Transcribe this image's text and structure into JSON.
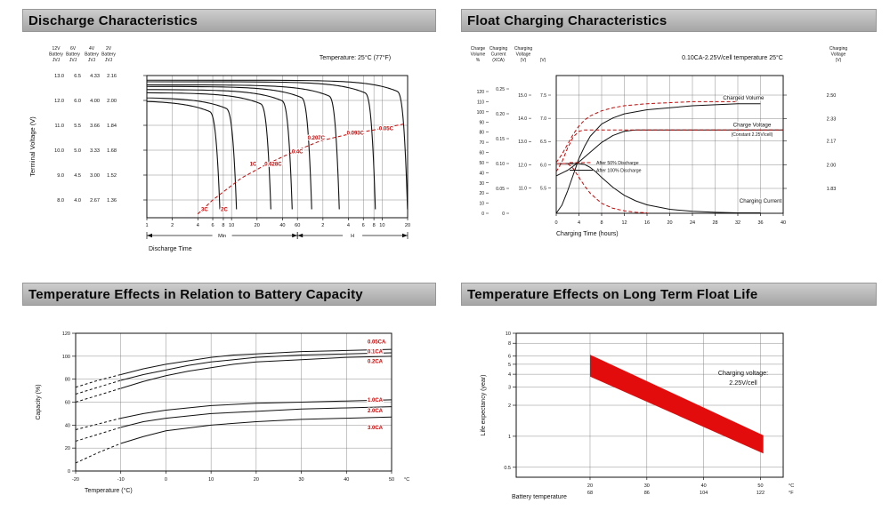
{
  "colors": {
    "red": "#c40808",
    "band_red": "#e30c0c",
    "grid": "#6f6f6f",
    "ink": "#111111",
    "header_top": "#cdcdcd",
    "header_bottom": "#a5a5a5"
  },
  "panels": {
    "discharge": {
      "title": "Discharge Characteristics"
    },
    "float_charging": {
      "title": "Float Charging Characteristics"
    },
    "temp_capacity": {
      "title": "Temperature Effects in Relation to Battery Capacity"
    },
    "float_life": {
      "title": "Temperature Effects on Long Term Float Life"
    }
  },
  "chart_data": [
    {
      "id": "discharge",
      "type": "line",
      "title": "Discharge Characteristics",
      "annotation": "Temperature: 25°C (77°F)",
      "xlabel": "Discharge Time",
      "ylabel": "Terminal Voltage (V)",
      "x_scale": "log",
      "x_unit_sections": [
        {
          "label": "Min",
          "ticks": [
            1,
            2,
            4,
            6,
            8,
            10,
            20,
            40,
            60
          ]
        },
        {
          "label": "H",
          "ticks": [
            2,
            4,
            6,
            8,
            10,
            20
          ]
        }
      ],
      "y_axes": [
        {
          "name": "12V Battery JVJ",
          "ticks": [
            "13.0",
            "12.0",
            "11.0",
            "10.0",
            "9.0",
            "8.0"
          ]
        },
        {
          "name": "6V Battery JVJ",
          "ticks": [
            "6.5",
            "6.0",
            "5.5",
            "5.0",
            "4.5",
            "4.0"
          ]
        },
        {
          "name": "4V Battery JVJ",
          "ticks": [
            "4.33",
            "4.00",
            "3.66",
            "3.33",
            "3.00",
            "2.67"
          ]
        },
        {
          "name": "2V Battery JVJ",
          "ticks": [
            "2.16",
            "2.00",
            "1.84",
            "1.68",
            "1.52",
            "1.36"
          ]
        }
      ],
      "y_range_2v_cell": [
        1.36,
        2.16
      ],
      "curves": [
        {
          "label": "3C",
          "t_end_min": 7,
          "v_start": 2.0,
          "label_at": [
            4.8,
            1.29
          ]
        },
        {
          "label": "2C",
          "t_end_min": 11,
          "v_start": 2.02,
          "label_at": [
            8.2,
            1.29
          ]
        },
        {
          "label": "1C",
          "t_end_min": 28,
          "v_start": 2.05,
          "label_at": [
            18,
            1.58
          ]
        },
        {
          "label": "0.628C",
          "t_end_min": 50,
          "v_start": 2.07,
          "label_at": [
            31,
            1.58
          ]
        },
        {
          "label": "0.4C",
          "t_end_min": 85,
          "v_start": 2.09,
          "label_at": [
            60,
            1.66
          ]
        },
        {
          "label": "0.207C",
          "t_end_min": 180,
          "v_start": 2.1,
          "label_at": [
            100,
            1.75
          ]
        },
        {
          "label": "0.093C",
          "t_end_min": 480,
          "v_start": 2.12,
          "label_at": [
            290,
            1.78
          ]
        },
        {
          "label": "0.05C",
          "t_end_min": 1150,
          "v_start": 2.13,
          "label_at": [
            670,
            1.81
          ]
        }
      ],
      "eod_dashed_curve": [
        [
          4,
          1.27
        ],
        [
          6,
          1.36
        ],
        [
          13,
          1.5
        ],
        [
          26,
          1.59
        ],
        [
          54,
          1.67
        ],
        [
          112,
          1.74
        ],
        [
          230,
          1.78
        ],
        [
          480,
          1.81
        ],
        [
          1120,
          1.85
        ]
      ]
    },
    {
      "id": "float_charging",
      "type": "line",
      "title": "Float Charging Characteristics",
      "annotation": "0.10CA-2.25V/cell  temperature 25°C",
      "xlabel": "Charging Time (hours)",
      "x_ticks": [
        0,
        4,
        8,
        12,
        16,
        20,
        24,
        28,
        32,
        36,
        40
      ],
      "left_axis_headers": [
        {
          "x": 19,
          "lines": [
            "Charge",
            "Volume",
            "%"
          ]
        },
        {
          "x": 42,
          "lines": [
            "Charging",
            "Current",
            "(XCA)"
          ]
        },
        {
          "x": 70,
          "lines": [
            "Charging",
            "Voltage",
            "(V)"
          ]
        },
        {
          "x": 92,
          "lines": [
            "",
            "",
            "(V)"
          ]
        }
      ],
      "left_axes": [
        {
          "title": "Charge Volume %",
          "ticks": [
            "120",
            "110",
            "100",
            "90",
            "80",
            "70",
            "60",
            "50",
            "40",
            "30",
            "20",
            "10",
            "0"
          ]
        },
        {
          "title": "Charging Current (XCA)",
          "ticks": [
            "0.25",
            "0.20",
            "0.15",
            "0.10",
            "0.05",
            "0"
          ]
        },
        {
          "title": "Charging Voltage 12V (V)",
          "ticks": [
            "15.0",
            "14.0",
            "13.0",
            "12.0",
            "11.0"
          ]
        },
        {
          "title": "Charging Voltage 6V (V)",
          "ticks": [
            "7.5",
            "7.0",
            "6.5",
            "6.0",
            "5.5"
          ]
        }
      ],
      "right_axis": {
        "header_lines": [
          "Charging",
          "Voltage",
          "(V)"
        ],
        "ticks": [
          "2.50",
          "2.33",
          "2.17",
          "2.00",
          "1.83"
        ]
      },
      "series": [
        {
          "name": "Charged Volume (after 100% discharge)",
          "axis": "volume",
          "color": "black",
          "dash": false,
          "points": [
            [
              0,
              0
            ],
            [
              1,
              8
            ],
            [
              2,
              22
            ],
            [
              3,
              38
            ],
            [
              4,
              54
            ],
            [
              5,
              66
            ],
            [
              6,
              76
            ],
            [
              8,
              88
            ],
            [
              10,
              94
            ],
            [
              12,
              98
            ],
            [
              16,
              102
            ],
            [
              20,
              104
            ],
            [
              24,
              106
            ],
            [
              28,
              107
            ],
            [
              32,
              108
            ],
            [
              36,
              108
            ]
          ]
        },
        {
          "name": "Charged Volume (after 50% discharge)",
          "axis": "volume",
          "color": "red",
          "dash": true,
          "points": [
            [
              0,
              50
            ],
            [
              1,
              58
            ],
            [
              2,
              68
            ],
            [
              3,
              78
            ],
            [
              4,
              86
            ],
            [
              5,
              92
            ],
            [
              6,
              96
            ],
            [
              8,
              101
            ],
            [
              10,
              104
            ],
            [
              12,
              106
            ],
            [
              16,
              108
            ],
            [
              20,
              109
            ],
            [
              24,
              110
            ],
            [
              28,
              110
            ],
            [
              32,
              110
            ]
          ]
        },
        {
          "name": "Charge Voltage (after 100% discharge)",
          "axis": "voltage",
          "color": "black",
          "dash": false,
          "points": [
            [
              0,
              1.92
            ],
            [
              2,
              1.96
            ],
            [
              4,
              2.02
            ],
            [
              6,
              2.09
            ],
            [
              8,
              2.16
            ],
            [
              10,
              2.21
            ],
            [
              12,
              2.24
            ],
            [
              14,
              2.25
            ],
            [
              40,
              2.25
            ]
          ]
        },
        {
          "name": "Charge Voltage (after 50% discharge)",
          "axis": "voltage",
          "color": "red",
          "dash": true,
          "points": [
            [
              0,
              1.95
            ],
            [
              1,
              2.02
            ],
            [
              2,
              2.12
            ],
            [
              3,
              2.2
            ],
            [
              4,
              2.24
            ],
            [
              5,
              2.25
            ],
            [
              40,
              2.25
            ]
          ]
        },
        {
          "name": "Charging Current (after 100% discharge)",
          "axis": "current",
          "color": "black",
          "dash": false,
          "points": [
            [
              0,
              0.1
            ],
            [
              4,
              0.1
            ],
            [
              5,
              0.098
            ],
            [
              6,
              0.092
            ],
            [
              7,
              0.083
            ],
            [
              8,
              0.072
            ],
            [
              10,
              0.052
            ],
            [
              12,
              0.036
            ],
            [
              14,
              0.025
            ],
            [
              16,
              0.017
            ],
            [
              20,
              0.008
            ],
            [
              24,
              0.004
            ],
            [
              28,
              0.002
            ],
            [
              32,
              0.001
            ],
            [
              36,
              0.001
            ]
          ]
        },
        {
          "name": "Charging Current (after 50% discharge)",
          "axis": "current",
          "color": "red",
          "dash": true,
          "points": [
            [
              0,
              0.1
            ],
            [
              2,
              0.1
            ],
            [
              3,
              0.09
            ],
            [
              4,
              0.072
            ],
            [
              5,
              0.055
            ],
            [
              6,
              0.04
            ],
            [
              8,
              0.02
            ],
            [
              10,
              0.01
            ],
            [
              12,
              0.005
            ],
            [
              14,
              0.002
            ],
            [
              16,
              0.001
            ]
          ]
        }
      ],
      "plot_labels": [
        {
          "text": "Charged Volume",
          "h": 33,
          "axis": "volume",
          "value": 112,
          "fs": 6.2
        },
        {
          "text": "Charge Voltage",
          "h": 34.5,
          "axis": "voltage",
          "value": 2.275,
          "fs": 6.2
        },
        {
          "text": "(Constant 2.25V/cell)",
          "h": 34.5,
          "axis": "voltage",
          "value": 2.207,
          "fs": 5
        },
        {
          "text": "Charging Current",
          "h": 36,
          "axis": "current",
          "value": 0.021,
          "fs": 6.2
        }
      ],
      "legend": [
        {
          "label": "After 50% Discharge",
          "color": "red",
          "dash": true
        },
        {
          "label": "After 100% Discharge",
          "color": "black",
          "dash": false
        }
      ]
    },
    {
      "id": "temp_capacity",
      "type": "line",
      "title": "Temperature Effects in Relation to Battery Capacity",
      "xlabel": "Temperature (°C)",
      "x_unit": "°C",
      "ylabel": "Capacity (%)",
      "x_ticks": [
        -20,
        -10,
        0,
        10,
        20,
        30,
        40,
        50
      ],
      "y_ticks": [
        0,
        20,
        40,
        60,
        80,
        100,
        120
      ],
      "series": [
        {
          "name": "0.05CA",
          "label_cap": 111,
          "dash_n": 2,
          "points": [
            [
              -20,
              73
            ],
            [
              -15,
              79
            ],
            [
              -10,
              84
            ],
            [
              -5,
              89
            ],
            [
              0,
              93
            ],
            [
              5,
              96
            ],
            [
              10,
              99
            ],
            [
              15,
              101
            ],
            [
              20,
              102
            ],
            [
              30,
              104
            ],
            [
              40,
              105
            ],
            [
              50,
              106
            ]
          ]
        },
        {
          "name": "0.1CA",
          "label_cap": 102.5,
          "dash_n": 2,
          "points": [
            [
              -20,
              67
            ],
            [
              -15,
              73
            ],
            [
              -10,
              79
            ],
            [
              -5,
              84
            ],
            [
              0,
              88
            ],
            [
              5,
              92
            ],
            [
              10,
              95
            ],
            [
              15,
              97
            ],
            [
              20,
              99
            ],
            [
              30,
              101
            ],
            [
              40,
              102
            ],
            [
              50,
              103
            ]
          ]
        },
        {
          "name": "0.2CA",
          "label_cap": 94,
          "dash_n": 2,
          "points": [
            [
              -20,
              60
            ],
            [
              -15,
              66
            ],
            [
              -10,
              72
            ],
            [
              -5,
              78
            ],
            [
              0,
              83
            ],
            [
              5,
              87
            ],
            [
              10,
              90
            ],
            [
              15,
              93
            ],
            [
              20,
              95
            ],
            [
              30,
              97
            ],
            [
              40,
              99
            ],
            [
              50,
              100
            ]
          ]
        },
        {
          "name": "1.0CA",
          "label_cap": 60.5,
          "dash_n": 2,
          "points": [
            [
              -20,
              36
            ],
            [
              -15,
              41
            ],
            [
              -10,
              46
            ],
            [
              -5,
              50
            ],
            [
              0,
              53
            ],
            [
              10,
              57
            ],
            [
              20,
              59
            ],
            [
              30,
              60
            ],
            [
              40,
              61
            ],
            [
              50,
              62
            ]
          ]
        },
        {
          "name": "2.0CA",
          "label_cap": 51,
          "dash_n": 2,
          "points": [
            [
              -20,
              26
            ],
            [
              -15,
              32
            ],
            [
              -10,
              38
            ],
            [
              -5,
              43
            ],
            [
              0,
              46
            ],
            [
              10,
              50
            ],
            [
              20,
              52
            ],
            [
              30,
              54
            ],
            [
              40,
              55
            ],
            [
              50,
              56
            ]
          ]
        },
        {
          "name": "3.0CA",
          "label_cap": 36.5,
          "dash_n": 2,
          "points": [
            [
              -20,
              7
            ],
            [
              -15,
              16
            ],
            [
              -10,
              24
            ],
            [
              -5,
              30
            ],
            [
              0,
              35
            ],
            [
              10,
              40
            ],
            [
              20,
              43
            ],
            [
              30,
              45
            ],
            [
              40,
              46
            ],
            [
              50,
              47
            ]
          ]
        }
      ]
    },
    {
      "id": "float_life",
      "type": "band",
      "title": "Temperature Effects on Long Term Float Life",
      "xlabel": "Battery temperature",
      "ylabel": "Life expectancy (year)",
      "x_unit_c": "°C",
      "x_unit_f": "°F",
      "x_ticks": [
        {
          "c": "20",
          "f": "68"
        },
        {
          "c": "30",
          "f": "86"
        },
        {
          "c": "40",
          "f": "104"
        },
        {
          "c": "50",
          "f": "122"
        }
      ],
      "y_scale": "log",
      "y_ticks": [
        10,
        8,
        6,
        5,
        4,
        3,
        2,
        1,
        0.5
      ],
      "annotation_lines": [
        "Charging voltage:",
        "2.25V/cell"
      ],
      "band_upper": [
        [
          20,
          6.2
        ],
        [
          50.5,
          1.02
        ]
      ],
      "band_lower": [
        [
          20,
          3.8
        ],
        [
          50.5,
          0.68
        ]
      ]
    }
  ]
}
